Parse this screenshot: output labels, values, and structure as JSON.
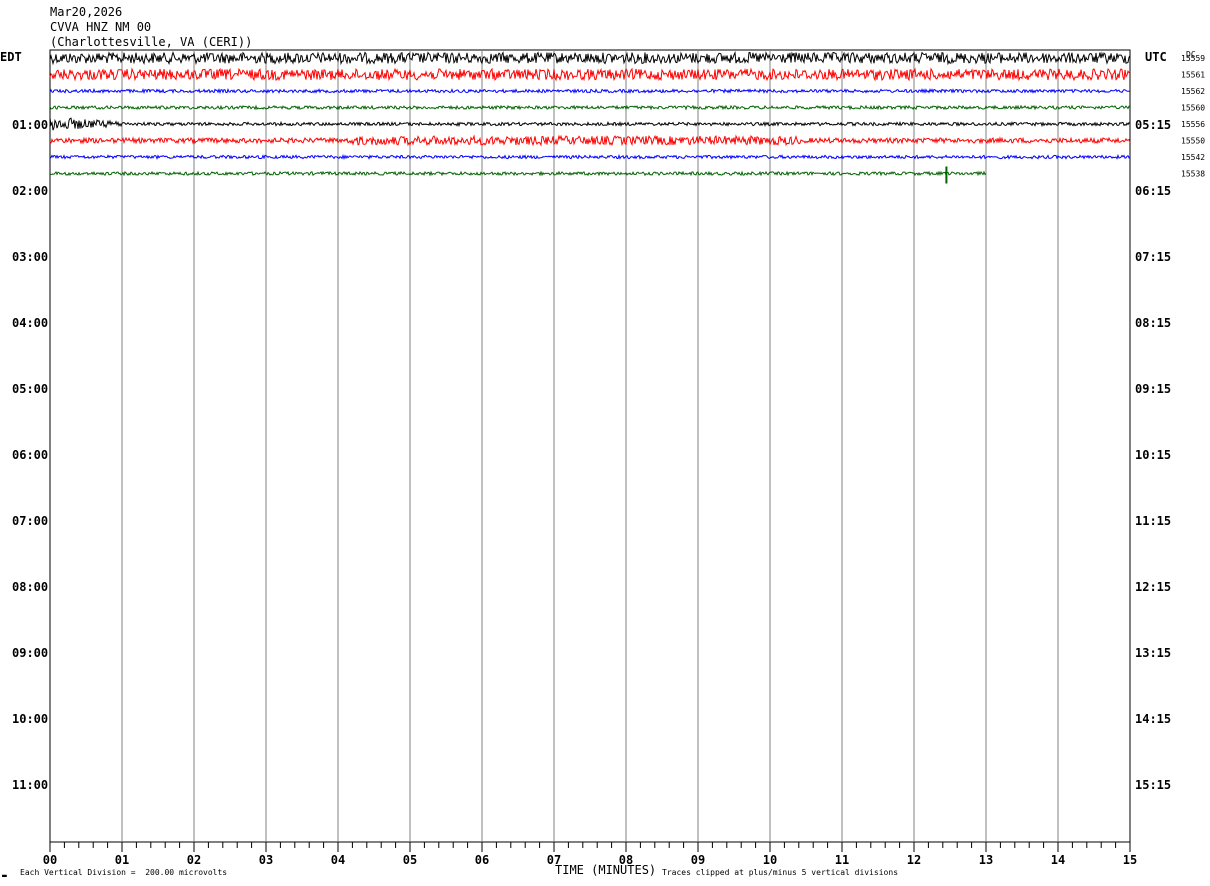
{
  "header": {
    "date": "Mar20,2026",
    "station": "CVVA HNZ NM 00",
    "location": "(Charlottesville, VA (CERI))"
  },
  "left_tz": "EDT",
  "right_tz": "UTC",
  "dc_label": "DC",
  "footer": {
    "xlabel": "TIME (MINUTES)",
    "scale_note": "Each Vertical Division =  200.00 microvolts",
    "clip_note": "Traces clipped at plus/minus 5 vertical divisions",
    "corner_mark": "▬"
  },
  "colors": {
    "trace1": "#000000",
    "trace2": "#ff0000",
    "trace3": "#0000ff",
    "trace4": "#006400",
    "grid": "#808080"
  },
  "chart_data": {
    "type": "line",
    "title": "CVVA HNZ NM 00",
    "xlabel": "TIME (MINUTES)",
    "xlim": [
      0,
      15
    ],
    "x_ticks": [
      "00",
      "01",
      "02",
      "03",
      "04",
      "05",
      "06",
      "07",
      "08",
      "09",
      "10",
      "11",
      "12",
      "13",
      "14",
      "15"
    ],
    "left_hour_labels": [
      "01:00",
      "02:00",
      "03:00",
      "04:00",
      "05:00",
      "06:00",
      "07:00",
      "08:00",
      "09:00",
      "10:00",
      "11:00"
    ],
    "right_hour_labels": [
      "05:15",
      "06:15",
      "07:15",
      "08:15",
      "09:15",
      "10:15",
      "11:15",
      "12:15",
      "13:15",
      "14:15",
      "15:15"
    ],
    "traces": [
      {
        "color": "#000000",
        "dc": "15559",
        "end_minute": 15,
        "amplitude": "high"
      },
      {
        "color": "#ff0000",
        "dc": "15561",
        "end_minute": 15,
        "amplitude": "high"
      },
      {
        "color": "#0000ff",
        "dc": "15562",
        "end_minute": 15,
        "amplitude": "low"
      },
      {
        "color": "#006400",
        "dc": "15560",
        "end_minute": 15,
        "amplitude": "low"
      },
      {
        "color": "#000000",
        "dc": "15556",
        "end_minute": 15,
        "amplitude": "low"
      },
      {
        "color": "#ff0000",
        "dc": "15550",
        "end_minute": 15,
        "amplitude": "medium"
      },
      {
        "color": "#0000ff",
        "dc": "15542",
        "end_minute": 15,
        "amplitude": "low"
      },
      {
        "color": "#006400",
        "dc": "15538",
        "end_minute": 13,
        "amplitude": "low"
      }
    ]
  }
}
